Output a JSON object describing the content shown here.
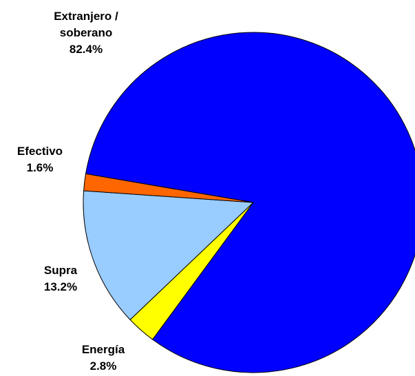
{
  "chart_data": {
    "type": "pie",
    "categories": [
      "Extranjero / soberano",
      "Energía",
      "Supra",
      "Efectivo"
    ],
    "values": [
      82.4,
      2.8,
      13.2,
      1.6
    ],
    "value_labels": [
      "82.4%",
      "2.8%",
      "13.2%",
      "1.6%"
    ],
    "colors": [
      "#0000ff",
      "#ffff00",
      "#99ccff",
      "#ff6600"
    ]
  }
}
